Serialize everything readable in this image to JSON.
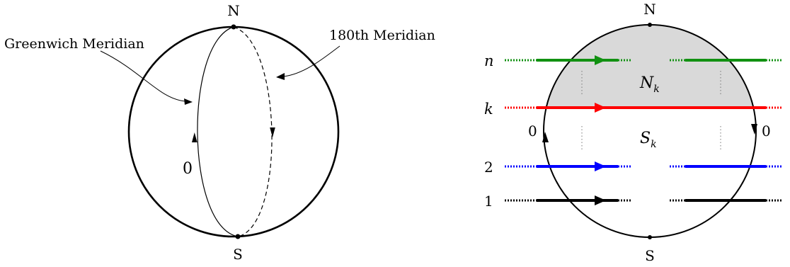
{
  "left_diagram": {
    "north_label": "N",
    "south_label": "S",
    "greenwich_label": "Greenwich Meridian",
    "meridian180_label": "180th Meridian",
    "zero_label": "0"
  },
  "right_diagram": {
    "north_label": "N",
    "south_label": "S",
    "rows": [
      {
        "label": "n",
        "color": "#119111"
      },
      {
        "label": "k",
        "color": "#ff0000"
      },
      {
        "label": "2",
        "color": "#0000ff"
      },
      {
        "label": "1",
        "color": "#000000"
      }
    ],
    "region_north": "N",
    "region_north_sub": "k",
    "region_south": "S",
    "region_south_sub": "k",
    "zero_left": "0",
    "zero_right": "0",
    "shade_color": "#d9d9d9"
  }
}
